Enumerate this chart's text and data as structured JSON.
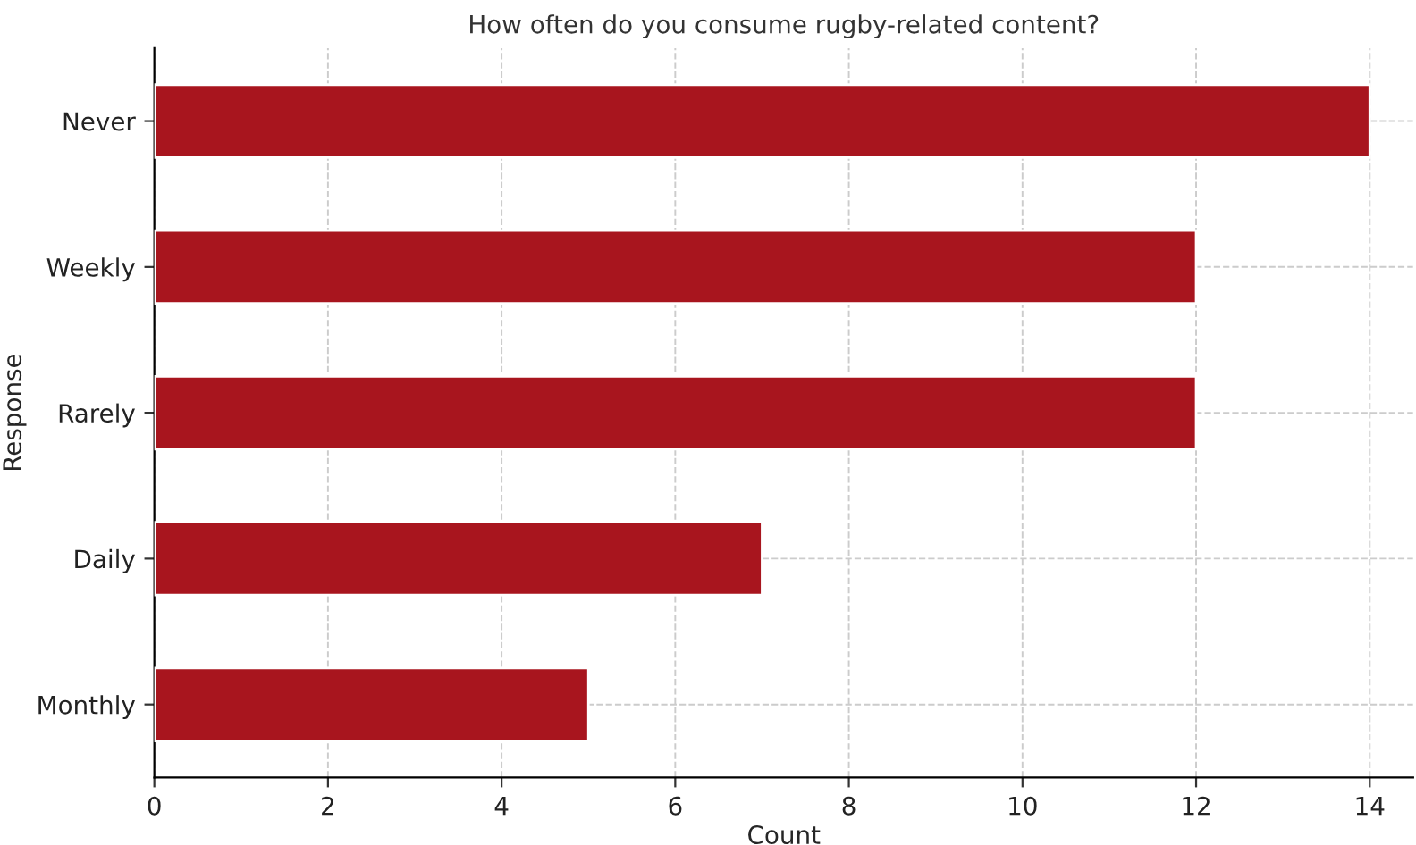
{
  "chart_data": {
    "type": "bar",
    "orientation": "horizontal",
    "title": "How often do you consume rugby-related content?",
    "xlabel": "Count",
    "ylabel": "Response",
    "categories": [
      "Never",
      "Weekly",
      "Rarely",
      "Daily",
      "Monthly"
    ],
    "values": [
      14,
      12,
      12,
      7,
      5
    ],
    "color": "#a8151e",
    "xlim": [
      0,
      14.5
    ],
    "xticks": [
      0,
      2,
      4,
      6,
      8,
      10,
      12,
      14
    ],
    "grid": true
  }
}
